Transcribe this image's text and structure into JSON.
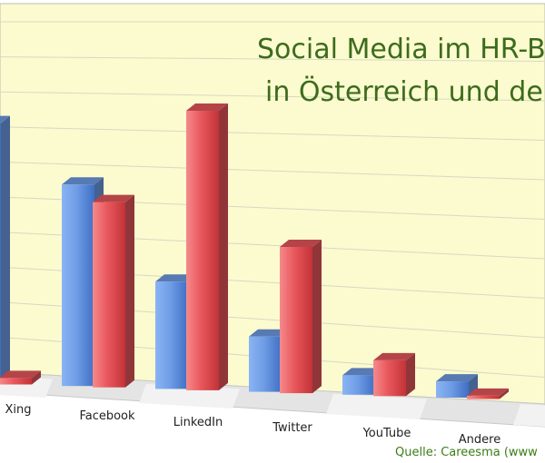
{
  "chart_data": {
    "type": "bar",
    "title_lines": [
      "Social Media im HR-B",
      "in Österreich und der"
    ],
    "source": "Quelle: Careesma (www",
    "categories": [
      "Xing",
      "Facebook",
      "LinkedIn",
      "Twitter",
      "YouTube",
      "Andere"
    ],
    "series": [
      {
        "values": [
          80,
          62,
          33,
          17,
          6,
          5
        ]
      },
      {
        "values": [
          2,
          57,
          86,
          45,
          11,
          1
        ]
      }
    ],
    "ylim": [
      0,
      100
    ],
    "grid": true,
    "colors": {
      "series_a": "#6f9de6",
      "series_b": "#e8575c",
      "plot_background": "#fbfbcf",
      "gridline": "#d8d8c4",
      "title": "#3d6b1c",
      "source": "#3a7d14"
    }
  }
}
